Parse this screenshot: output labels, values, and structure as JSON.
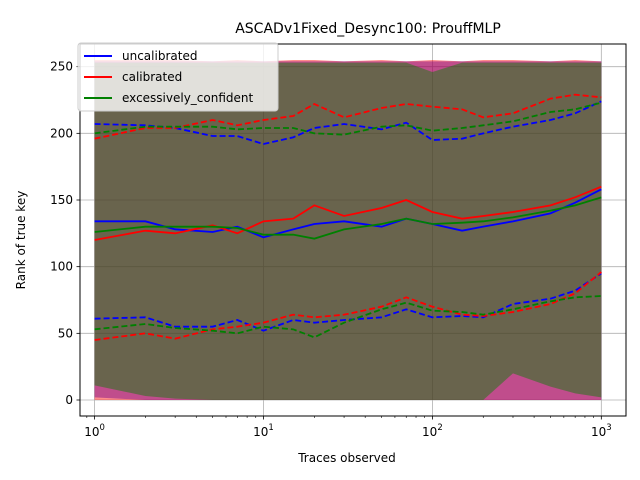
{
  "chart_data": {
    "type": "line",
    "title": "ASCADv1Fixed_Desync100: ProuffMLP",
    "xlabel": "Traces observed",
    "ylabel": "Rank of true key",
    "xscale": "log",
    "xlim": [
      0.82,
      1400
    ],
    "ylim": [
      -12,
      267
    ],
    "x_ticks": [
      {
        "value": 1,
        "base": "10",
        "exp": "0"
      },
      {
        "value": 10,
        "base": "10",
        "exp": "1"
      },
      {
        "value": 100,
        "base": "10",
        "exp": "2"
      },
      {
        "value": 1000,
        "base": "10",
        "exp": "3"
      }
    ],
    "y_ticks": [
      0,
      50,
      100,
      150,
      200,
      250
    ],
    "grid": true,
    "legend_position": "top-left",
    "series": [
      {
        "name": "uncalibrated",
        "color": "#0000ff",
        "x": [
          1,
          2,
          3,
          5,
          7,
          10,
          15,
          20,
          30,
          50,
          70,
          100,
          150,
          200,
          300,
          500,
          700,
          1000
        ],
        "median": [
          134,
          134,
          128,
          126,
          130,
          122,
          128,
          132,
          134,
          130,
          136,
          132,
          127,
          130,
          134,
          140,
          148,
          158
        ],
        "lower": [
          61,
          62,
          55,
          55,
          60,
          52,
          60,
          58,
          60,
          62,
          68,
          62,
          63,
          62,
          72,
          76,
          82,
          95
        ],
        "upper": [
          207,
          206,
          204,
          198,
          198,
          192,
          197,
          204,
          207,
          203,
          208,
          195,
          196,
          200,
          205,
          210,
          215,
          224
        ],
        "band_low": [
          2,
          0,
          0,
          0,
          0,
          0,
          0,
          0,
          0,
          0,
          0,
          0,
          0,
          0,
          0,
          0,
          0,
          0
        ],
        "band_high": [
          254,
          254,
          254,
          254,
          254,
          254,
          254,
          254,
          254,
          254,
          254,
          254,
          254,
          254,
          254,
          254,
          254,
          254
        ]
      },
      {
        "name": "calibrated",
        "color": "#ff0000",
        "x": [
          1,
          2,
          3,
          5,
          7,
          10,
          15,
          20,
          30,
          50,
          70,
          100,
          150,
          200,
          300,
          500,
          700,
          1000
        ],
        "median": [
          120,
          127,
          125,
          131,
          125,
          134,
          136,
          146,
          138,
          144,
          150,
          141,
          136,
          138,
          141,
          146,
          152,
          160
        ],
        "lower": [
          45,
          50,
          46,
          53,
          55,
          58,
          64,
          62,
          64,
          70,
          77,
          70,
          64,
          63,
          66,
          72,
          80,
          96
        ],
        "upper": [
          196,
          204,
          204,
          210,
          206,
          210,
          213,
          222,
          212,
          219,
          222,
          220,
          218,
          212,
          215,
          226,
          229,
          227
        ],
        "band_low": [
          0,
          0,
          0,
          0,
          0,
          0,
          0,
          0,
          0,
          0,
          0,
          0,
          0,
          0,
          0,
          0,
          0,
          0
        ],
        "band_high": [
          255,
          255,
          255,
          254,
          255,
          254,
          255,
          255,
          254,
          255,
          254,
          255,
          254,
          255,
          255,
          254,
          255,
          254
        ]
      },
      {
        "name": "excessively_confident",
        "color": "#008000",
        "x": [
          1,
          2,
          3,
          5,
          7,
          10,
          15,
          20,
          30,
          50,
          70,
          100,
          150,
          200,
          300,
          500,
          700,
          1000
        ],
        "median": [
          126,
          130,
          130,
          130,
          129,
          124,
          124,
          121,
          128,
          132,
          136,
          132,
          133,
          134,
          137,
          142,
          146,
          152
        ],
        "lower": [
          53,
          57,
          54,
          52,
          50,
          55,
          53,
          47,
          58,
          68,
          73,
          67,
          66,
          64,
          68,
          74,
          77,
          78
        ],
        "upper": [
          200,
          205,
          205,
          205,
          203,
          204,
          204,
          200,
          199,
          205,
          206,
          202,
          204,
          206,
          209,
          216,
          218,
          223
        ],
        "band_low": [
          11,
          3,
          1,
          0,
          0,
          0,
          0,
          0,
          0,
          0,
          0,
          0,
          0,
          0,
          20,
          10,
          5,
          2
        ],
        "band_high": [
          253,
          253,
          253,
          253,
          253,
          253,
          253,
          253,
          253,
          253,
          253,
          246,
          253,
          253,
          253,
          253,
          253,
          253
        ]
      }
    ]
  }
}
